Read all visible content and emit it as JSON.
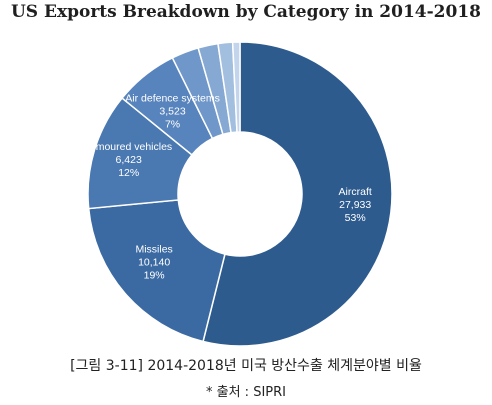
{
  "chart_data": {
    "type": "pie",
    "variant": "donut",
    "title": "US Exports Breakdown by Category in 2014-2018",
    "slices": [
      {
        "label": "Aircraft",
        "value": "27,933",
        "pct": "53%",
        "v": 27933,
        "color": "#2d5b8e"
      },
      {
        "label": "Missiles",
        "value": "10,140",
        "pct": "19%",
        "v": 10140,
        "color": "#3b6aa3"
      },
      {
        "label": "Armoured vehicles",
        "value": "6,423",
        "pct": "12%",
        "v": 6423,
        "color": "#4a78b0"
      },
      {
        "label": "Air defence systems",
        "value": "3,523",
        "pct": "7%",
        "v": 3523,
        "color": "#5884bd"
      },
      {
        "label": "",
        "value": "",
        "pct": "",
        "v": 1500,
        "color": "#6f97c9"
      },
      {
        "label": "",
        "value": "",
        "pct": "",
        "v": 1100,
        "color": "#86a9d4"
      },
      {
        "label": "",
        "value": "",
        "pct": "",
        "v": 800,
        "color": "#a3bfe0"
      },
      {
        "label": "",
        "value": "",
        "pct": "",
        "v": 400,
        "color": "#c3d5ec"
      }
    ]
  },
  "caption": "[그림 3-11] 2014-2018년 미국 방산수출 체계분야별 비율",
  "source": "* 출처 : SIPRI"
}
